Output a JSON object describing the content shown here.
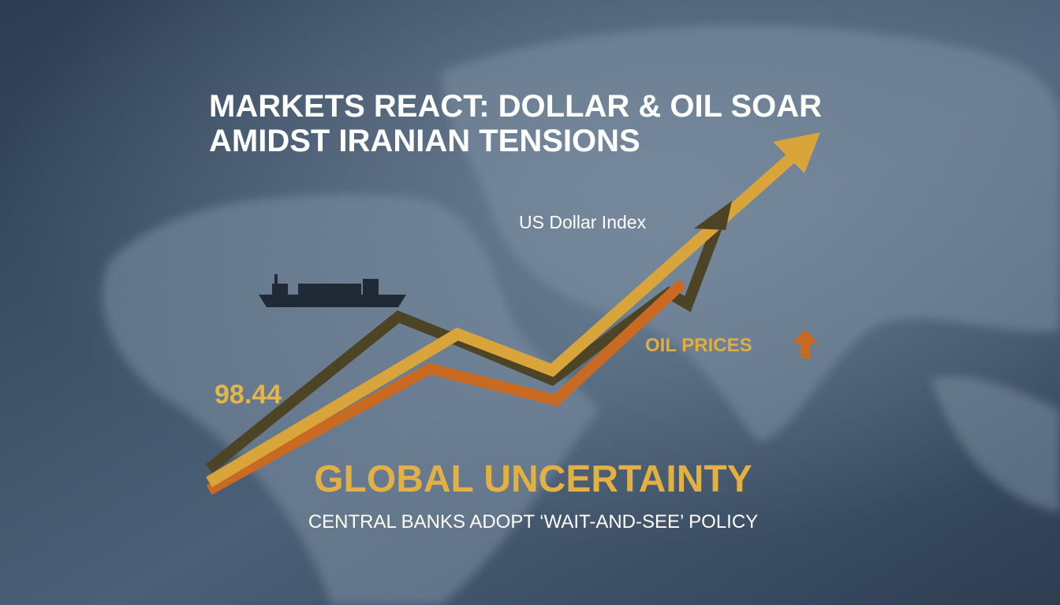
{
  "header": {
    "title_lines": [
      "MARKETS REACT: DOLLAR & OIL SOAR",
      "AMIDST IRANIAN TENSIONS"
    ]
  },
  "labels": {
    "dollar_index": "US Dollar Index",
    "oil_prices": "OIL PRICES",
    "value": "98.44"
  },
  "footer": {
    "headline": "GLOBAL UNCERTAINTY",
    "subhead": "CENTRAL BANKS ADOPT ‘WAIT-AND-SEE’ POLICY"
  }
}
